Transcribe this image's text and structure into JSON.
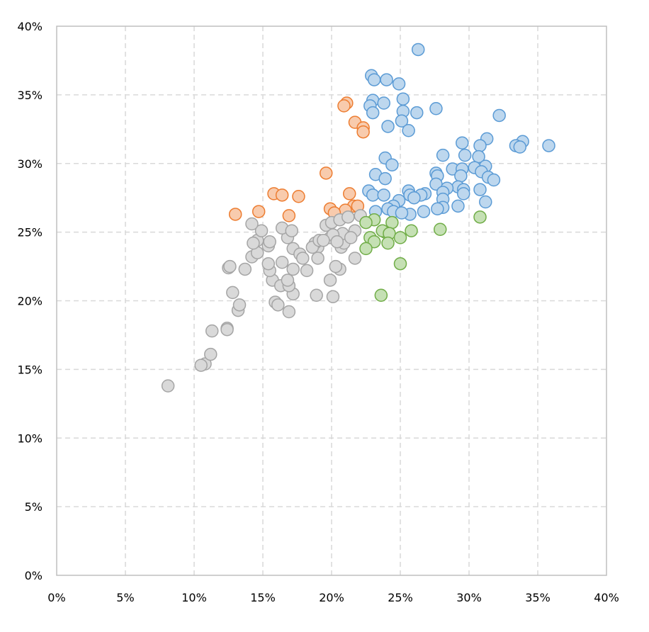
{
  "chart_data": {
    "type": "scatter",
    "title": "",
    "xlabel": "",
    "ylabel": "",
    "xlim": [
      0,
      40
    ],
    "ylim": [
      0,
      40
    ],
    "x_ticks": [
      "0%",
      "5%",
      "10%",
      "15%",
      "20%",
      "25%",
      "30%",
      "35%",
      "40%"
    ],
    "y_ticks": [
      "0%",
      "5%",
      "10%",
      "15%",
      "20%",
      "25%",
      "30%",
      "35%",
      "40%"
    ],
    "grid": true,
    "legend": "none",
    "series": [
      {
        "color_fill": "#bdd7ee",
        "color_stroke": "#5b9bd5",
        "points": [
          [
            26.3,
            38.3
          ],
          [
            22.9,
            36.4
          ],
          [
            23.1,
            36.1
          ],
          [
            24.0,
            36.1
          ],
          [
            24.9,
            35.8
          ],
          [
            25.2,
            34.7
          ],
          [
            23.0,
            34.6
          ],
          [
            23.8,
            34.4
          ],
          [
            22.8,
            34.2
          ],
          [
            25.2,
            33.8
          ],
          [
            23.0,
            33.7
          ],
          [
            26.2,
            33.7
          ],
          [
            27.6,
            34.0
          ],
          [
            32.2,
            33.5
          ],
          [
            25.1,
            33.1
          ],
          [
            24.1,
            32.7
          ],
          [
            25.6,
            32.4
          ],
          [
            31.3,
            31.8
          ],
          [
            29.5,
            31.5
          ],
          [
            33.9,
            31.6
          ],
          [
            33.4,
            31.3
          ],
          [
            33.7,
            31.2
          ],
          [
            35.8,
            31.3
          ],
          [
            30.8,
            31.3
          ],
          [
            28.1,
            30.6
          ],
          [
            29.7,
            30.6
          ],
          [
            30.7,
            30.5
          ],
          [
            23.9,
            30.4
          ],
          [
            24.4,
            29.9
          ],
          [
            31.2,
            29.8
          ],
          [
            28.8,
            29.6
          ],
          [
            30.4,
            29.7
          ],
          [
            29.5,
            29.6
          ],
          [
            30.9,
            29.4
          ],
          [
            23.2,
            29.2
          ],
          [
            27.6,
            29.3
          ],
          [
            27.7,
            29.1
          ],
          [
            29.4,
            29.1
          ],
          [
            31.4,
            29.0
          ],
          [
            31.8,
            28.8
          ],
          [
            23.9,
            28.9
          ],
          [
            27.6,
            28.5
          ],
          [
            29.2,
            28.3
          ],
          [
            28.4,
            28.2
          ],
          [
            29.6,
            28.1
          ],
          [
            22.7,
            28.0
          ],
          [
            25.6,
            28.0
          ],
          [
            30.8,
            28.1
          ],
          [
            26.8,
            27.8
          ],
          [
            28.1,
            27.9
          ],
          [
            29.6,
            27.8
          ],
          [
            23.0,
            27.7
          ],
          [
            26.5,
            27.7
          ],
          [
            23.8,
            27.7
          ],
          [
            25.7,
            27.7
          ],
          [
            26.0,
            27.5
          ],
          [
            28.1,
            27.4
          ],
          [
            31.2,
            27.2
          ],
          [
            24.9,
            27.3
          ],
          [
            24.5,
            26.9
          ],
          [
            24.1,
            26.7
          ],
          [
            28.1,
            26.8
          ],
          [
            27.7,
            26.7
          ],
          [
            29.2,
            26.9
          ],
          [
            26.7,
            26.5
          ],
          [
            23.2,
            26.5
          ],
          [
            24.5,
            26.5
          ],
          [
            25.7,
            26.3
          ],
          [
            25.1,
            26.4
          ]
        ]
      },
      {
        "color_fill": "#f8cbad",
        "color_stroke": "#ed7d31",
        "points": [
          [
            21.1,
            34.4
          ],
          [
            20.9,
            34.2
          ],
          [
            21.7,
            33.0
          ],
          [
            22.3,
            32.6
          ],
          [
            22.3,
            32.3
          ],
          [
            19.6,
            29.3
          ],
          [
            15.8,
            27.8
          ],
          [
            16.4,
            27.7
          ],
          [
            17.6,
            27.6
          ],
          [
            21.3,
            27.8
          ],
          [
            19.9,
            26.7
          ],
          [
            21.6,
            26.9
          ],
          [
            21.9,
            26.9
          ],
          [
            21.0,
            26.6
          ],
          [
            20.2,
            26.4
          ],
          [
            14.7,
            26.5
          ],
          [
            13.0,
            26.3
          ],
          [
            16.9,
            26.2
          ]
        ]
      },
      {
        "color_fill": "#d9d9d9",
        "color_stroke": "#a5a5a5",
        "points": [
          [
            8.1,
            13.8
          ],
          [
            10.8,
            15.4
          ],
          [
            10.5,
            15.3
          ],
          [
            11.2,
            16.1
          ],
          [
            11.3,
            17.8
          ],
          [
            12.4,
            18.0
          ],
          [
            12.4,
            17.9
          ],
          [
            13.2,
            19.3
          ],
          [
            13.3,
            19.7
          ],
          [
            12.8,
            20.6
          ],
          [
            15.9,
            19.9
          ],
          [
            16.1,
            19.7
          ],
          [
            16.9,
            19.2
          ],
          [
            17.2,
            20.5
          ],
          [
            18.9,
            20.4
          ],
          [
            20.1,
            20.3
          ],
          [
            15.7,
            21.5
          ],
          [
            16.3,
            21.1
          ],
          [
            16.9,
            21.1
          ],
          [
            16.8,
            21.5
          ],
          [
            19.9,
            21.5
          ],
          [
            15.5,
            22.2
          ],
          [
            17.2,
            22.3
          ],
          [
            18.2,
            22.2
          ],
          [
            20.6,
            22.3
          ],
          [
            20.3,
            22.5
          ],
          [
            12.5,
            22.4
          ],
          [
            12.6,
            22.5
          ],
          [
            13.7,
            22.3
          ],
          [
            15.4,
            22.7
          ],
          [
            16.4,
            22.8
          ],
          [
            14.2,
            23.2
          ],
          [
            14.6,
            23.5
          ],
          [
            15.4,
            24.0
          ],
          [
            15.5,
            24.3
          ],
          [
            14.6,
            24.4
          ],
          [
            14.3,
            24.2
          ],
          [
            17.2,
            23.8
          ],
          [
            17.7,
            23.4
          ],
          [
            19.0,
            23.9
          ],
          [
            18.8,
            24.2
          ],
          [
            18.6,
            23.9
          ],
          [
            19.1,
            24.4
          ],
          [
            20.7,
            23.9
          ],
          [
            20.9,
            24.2
          ],
          [
            21.7,
            23.1
          ],
          [
            19.0,
            23.1
          ],
          [
            16.8,
            24.6
          ],
          [
            14.9,
            25.1
          ],
          [
            14.2,
            25.6
          ],
          [
            16.4,
            25.3
          ],
          [
            17.1,
            25.1
          ],
          [
            19.6,
            25.5
          ],
          [
            19.9,
            24.6
          ],
          [
            20.0,
            25.7
          ],
          [
            20.6,
            25.9
          ],
          [
            21.2,
            26.1
          ],
          [
            21.7,
            25.1
          ],
          [
            20.8,
            24.9
          ],
          [
            20.1,
            24.8
          ],
          [
            21.4,
            24.6
          ],
          [
            22.1,
            26.2
          ],
          [
            19.4,
            24.4
          ],
          [
            20.4,
            24.3
          ],
          [
            17.9,
            23.1
          ]
        ]
      },
      {
        "color_fill": "#c5e0b4",
        "color_stroke": "#70ad47",
        "points": [
          [
            30.8,
            26.1
          ],
          [
            23.1,
            25.9
          ],
          [
            22.5,
            25.7
          ],
          [
            24.4,
            25.7
          ],
          [
            25.8,
            25.1
          ],
          [
            27.9,
            25.2
          ],
          [
            23.9,
            25.0
          ],
          [
            23.7,
            25.1
          ],
          [
            24.2,
            24.9
          ],
          [
            22.8,
            24.6
          ],
          [
            25.0,
            24.6
          ],
          [
            23.1,
            24.3
          ],
          [
            24.1,
            24.2
          ],
          [
            22.5,
            23.8
          ],
          [
            25.0,
            22.7
          ],
          [
            23.6,
            20.4
          ]
        ]
      }
    ]
  }
}
